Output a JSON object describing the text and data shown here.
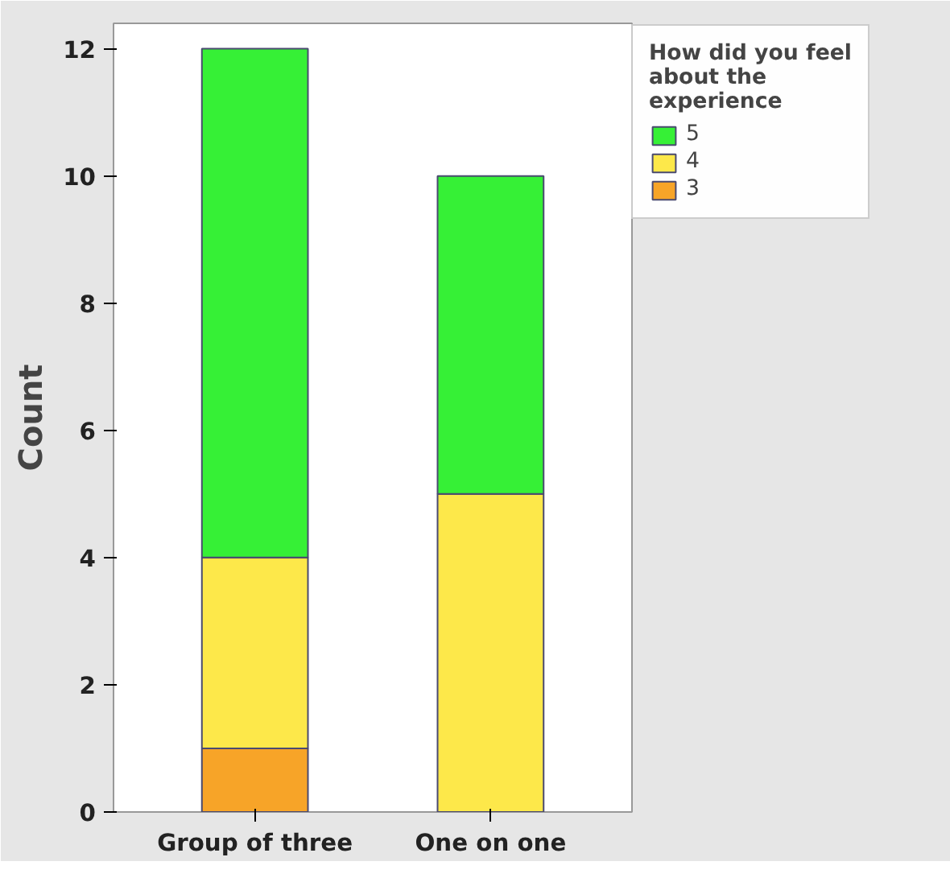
{
  "chart_data": {
    "type": "bar",
    "stacked": true,
    "ylabel": "Count",
    "legend_title": "How did you feel about the experience",
    "categories": [
      "Group of three",
      "One on one"
    ],
    "series": [
      {
        "name": "3",
        "color": "#f7a428",
        "values": [
          1,
          0
        ]
      },
      {
        "name": "4",
        "color": "#fde84a",
        "values": [
          3,
          5
        ]
      },
      {
        "name": "5",
        "color": "#36f036",
        "values": [
          8,
          5
        ]
      }
    ],
    "ylim": [
      0,
      12.4
    ],
    "yticks": [
      0,
      2,
      4,
      6,
      8,
      10,
      12
    ],
    "grid": false,
    "legend": "top right"
  }
}
